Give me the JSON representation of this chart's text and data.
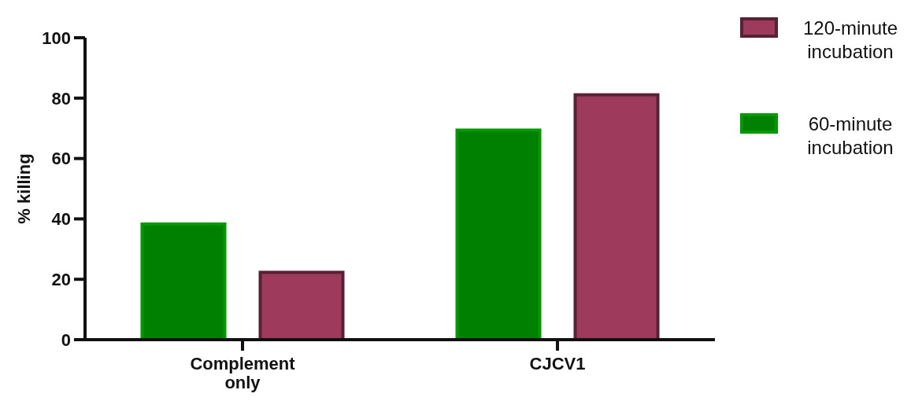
{
  "chart_data": {
    "type": "bar",
    "ylabel": "% killing",
    "categories": [
      "Complement only",
      "CJCV1"
    ],
    "series": [
      {
        "name": "60-minute incubation",
        "color": "#008000",
        "values": [
          38.3,
          69.4
        ]
      },
      {
        "name": "120-minute incubation",
        "color": "#9e3a5c",
        "values": [
          22.3,
          81.1
        ]
      }
    ],
    "ylim": [
      0,
      100
    ],
    "yticks": [
      0,
      20,
      40,
      60,
      80,
      100
    ],
    "legend": "top right",
    "grid": false
  }
}
